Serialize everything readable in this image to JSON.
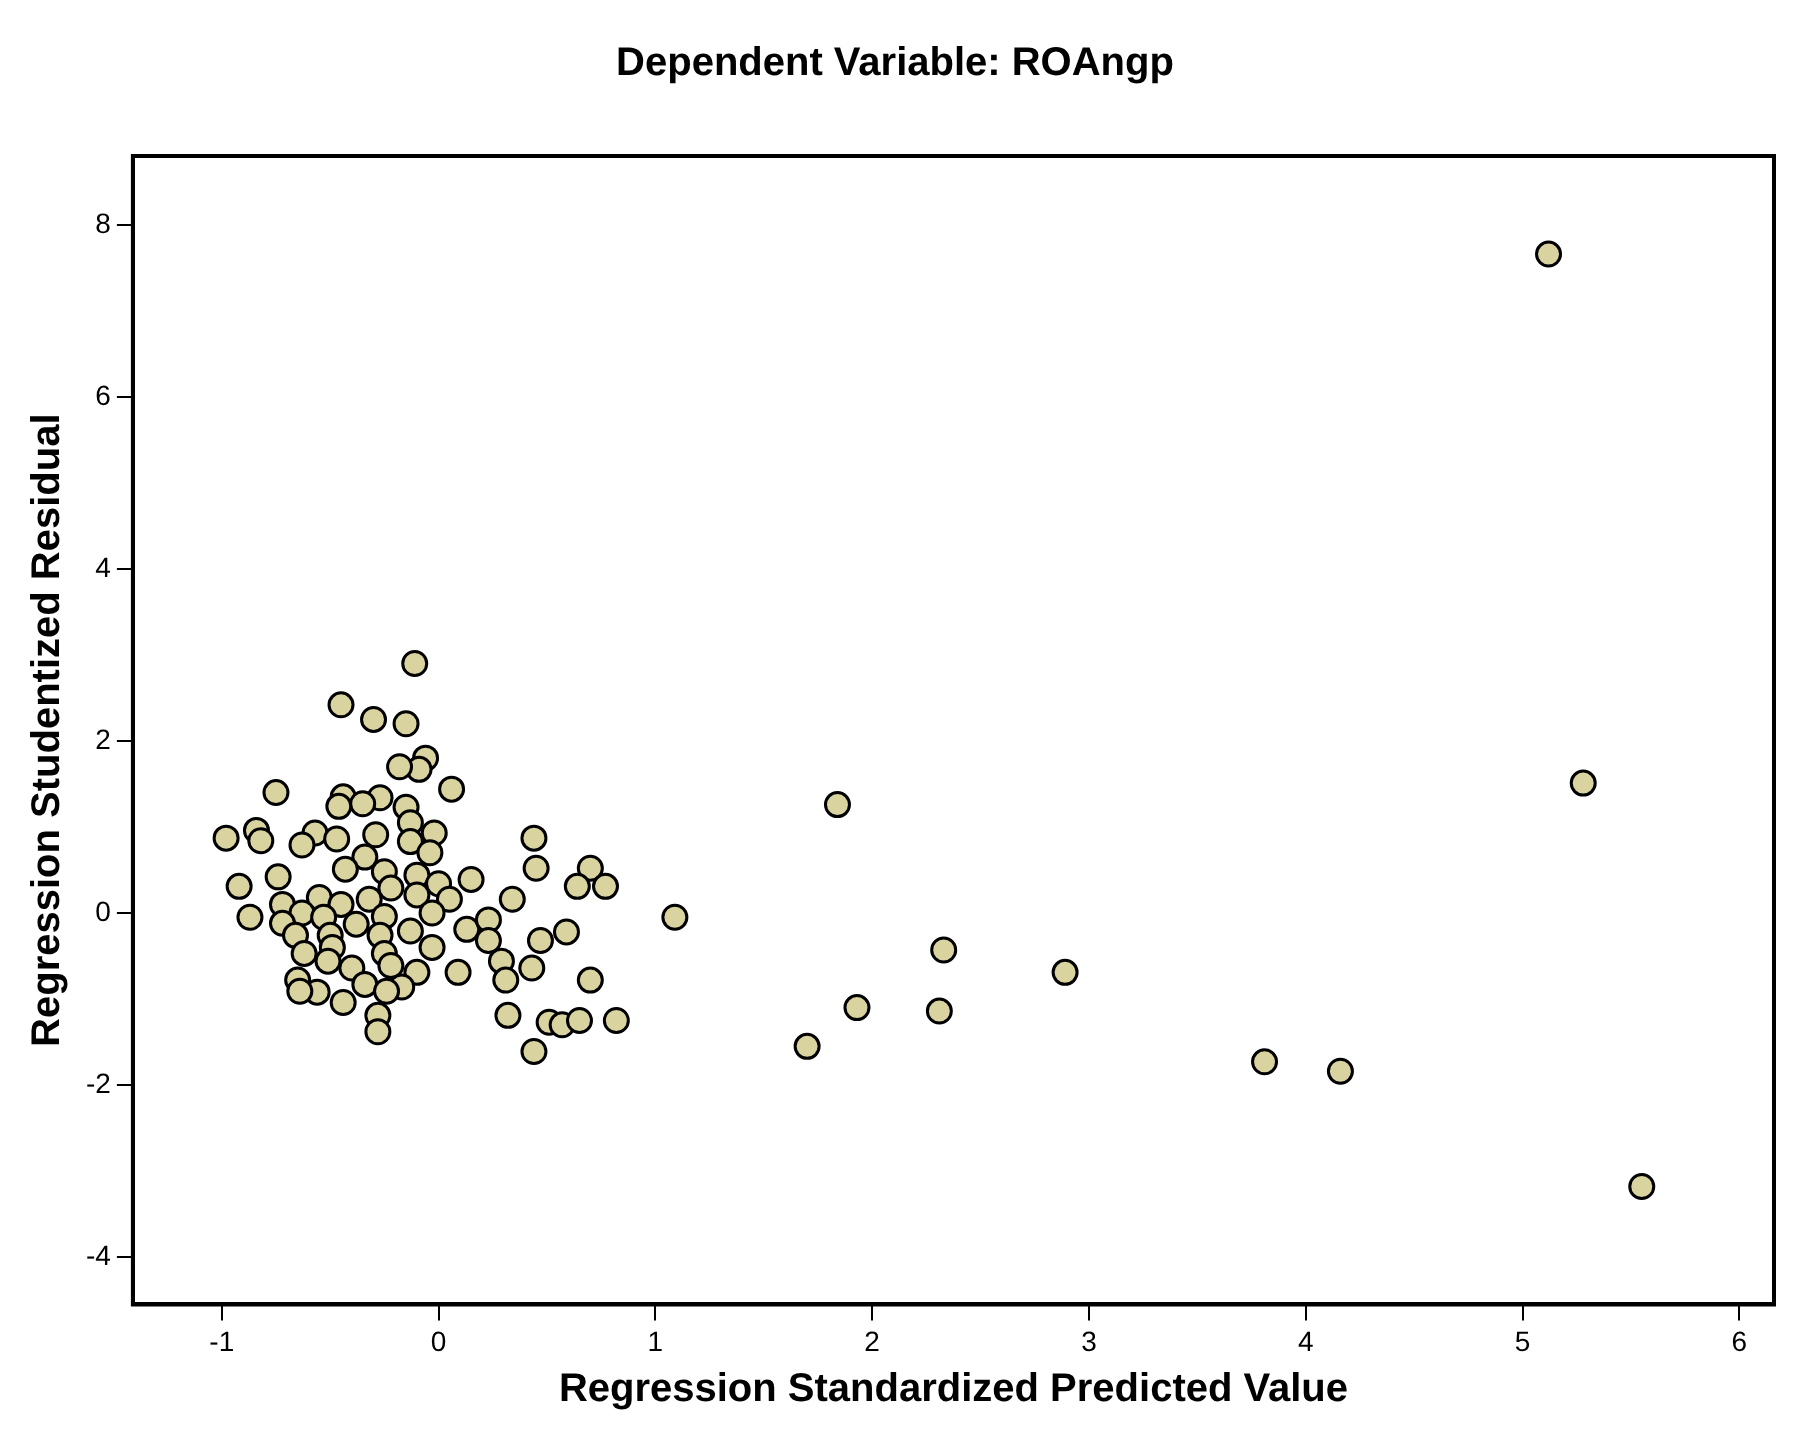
{
  "chart_data": {
    "type": "scatter",
    "title": "Dependent Variable: ROAngp",
    "xlabel": "Regression Standardized Predicted Value",
    "ylabel": "Regression Studentized Residual",
    "xlim": [
      -1.41,
      6.16
    ],
    "ylim": [
      -4.55,
      8.8
    ],
    "xticks": [
      -1,
      0,
      1,
      2,
      3,
      4,
      5,
      6
    ],
    "yticks": [
      -4,
      -2,
      0,
      2,
      4,
      6,
      8
    ],
    "grid": false,
    "legend": false,
    "marker": "circle",
    "series": [
      {
        "color": "#d9d3a0",
        "x": [
          -0.11,
          -0.45,
          -0.3,
          -0.15,
          -0.06,
          -0.09,
          -0.18,
          0.06,
          -0.75,
          -0.44,
          -0.27,
          -0.46,
          -0.35,
          -0.15,
          -0.13,
          -0.98,
          -0.84,
          -0.82,
          -0.57,
          -0.47,
          -0.29,
          -0.02,
          -0.63,
          -0.13,
          -0.34,
          -0.04,
          -0.43,
          -0.25,
          0.44,
          0.45,
          0.7,
          0.64,
          0.77,
          0.15,
          -0.92,
          -0.74,
          -0.1,
          -0.22,
          0.0,
          -0.72,
          -0.55,
          -0.45,
          -0.32,
          -0.1,
          0.05,
          0.34,
          -0.87,
          -0.63,
          -0.72,
          -0.53,
          -0.38,
          -0.25,
          -0.03,
          -0.13,
          0.13,
          0.23,
          0.23,
          -0.27,
          -0.66,
          -0.5,
          1.09,
          -0.03,
          -0.25,
          -0.49,
          -0.62,
          0.59,
          0.47,
          0.29,
          0.43,
          0.09,
          -0.1,
          -0.22,
          -0.4,
          -0.51,
          -0.65,
          0.31,
          0.7,
          -0.34,
          -0.17,
          -0.56,
          -0.64,
          -0.44,
          -0.24,
          -0.28,
          0.32,
          -0.28,
          0.51,
          0.57,
          0.65,
          0.82,
          0.44,
          1.84,
          1.7,
          1.93,
          2.33,
          2.31,
          2.89,
          3.81,
          4.16,
          5.12,
          5.28,
          5.55
        ],
        "values": [
          2.9,
          2.42,
          2.25,
          2.2,
          1.8,
          1.67,
          1.7,
          1.44,
          1.4,
          1.35,
          1.34,
          1.24,
          1.27,
          1.23,
          1.05,
          0.87,
          0.96,
          0.84,
          0.93,
          0.86,
          0.91,
          0.93,
          0.79,
          0.83,
          0.65,
          0.7,
          0.51,
          0.48,
          0.87,
          0.52,
          0.52,
          0.31,
          0.31,
          0.39,
          0.31,
          0.42,
          0.44,
          0.29,
          0.34,
          0.1,
          0.18,
          0.1,
          0.16,
          0.21,
          0.16,
          0.16,
          -0.05,
          0.0,
          -0.12,
          -0.05,
          -0.13,
          -0.04,
          0.0,
          -0.21,
          -0.19,
          -0.08,
          -0.32,
          -0.26,
          -0.26,
          -0.26,
          -0.05,
          -0.4,
          -0.47,
          -0.4,
          -0.47,
          -0.22,
          -0.32,
          -0.56,
          -0.64,
          -0.69,
          -0.69,
          -0.61,
          -0.64,
          -0.56,
          -0.78,
          -0.78,
          -0.78,
          -0.83,
          -0.86,
          -0.92,
          -0.91,
          -1.04,
          -0.91,
          -1.19,
          -1.19,
          -1.38,
          -1.27,
          -1.3,
          -1.25,
          -1.25,
          -1.61,
          1.26,
          -1.55,
          -1.1,
          -0.43,
          -1.14,
          -0.69,
          -1.73,
          -1.84,
          7.66,
          1.51,
          -3.18
        ]
      }
    ]
  }
}
